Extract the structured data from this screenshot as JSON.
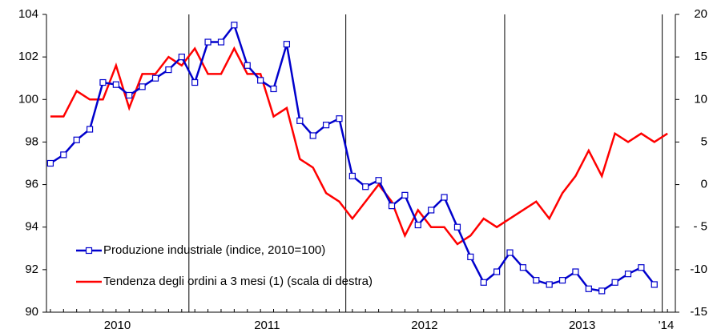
{
  "chart_data": {
    "type": "line",
    "x": [
      0,
      1,
      2,
      3,
      4,
      5,
      6,
      7,
      8,
      9,
      10,
      11,
      12,
      13,
      14,
      15,
      16,
      17,
      18,
      19,
      20,
      21,
      22,
      23,
      24,
      25,
      26,
      27,
      28,
      29,
      30,
      31,
      32,
      33,
      34,
      35,
      36,
      37,
      38,
      39,
      40,
      41,
      42,
      43,
      44,
      45,
      46,
      47
    ],
    "xlim": [
      -0.3,
      47.6
    ],
    "xticks": [
      {
        "value": 5.1,
        "label": "2010"
      },
      {
        "value": 16.5,
        "label": "2011"
      },
      {
        "value": 28.5,
        "label": "2012"
      },
      {
        "value": 40.5,
        "label": "2013"
      },
      {
        "value": 46.9,
        "label": "'14"
      }
    ],
    "year_dividers": [
      10.55,
      22.5,
      34.6,
      46.6
    ],
    "ylim": [
      90,
      104
    ],
    "yticks": [
      90,
      92,
      94,
      96,
      98,
      100,
      102,
      104
    ],
    "y2lim": [
      -15,
      20
    ],
    "y2ticks": [
      {
        "value": -15,
        "label": "-15"
      },
      {
        "value": -10,
        "label": "-10"
      },
      {
        "value": -5,
        "label": "- 5"
      },
      0,
      5,
      10,
      15,
      20
    ],
    "legend": "lower left",
    "series": [
      {
        "name": "Produzione industriale (indice, 2010=100)",
        "color": "#0000cc",
        "marker": "square",
        "values": [
          97.0,
          97.4,
          98.1,
          98.6,
          100.8,
          100.7,
          100.2,
          100.6,
          101.0,
          101.4,
          102.0,
          100.8,
          102.7,
          102.7,
          103.5,
          101.6,
          100.9,
          100.5,
          102.6,
          99.0,
          98.3,
          98.8,
          99.1,
          96.4,
          95.9,
          96.2,
          95.0,
          95.5,
          94.1,
          94.8,
          95.4,
          94.0,
          92.6,
          91.4,
          91.9,
          92.8,
          92.1,
          91.5,
          91.3,
          91.5,
          91.9,
          91.1,
          91.0,
          91.4,
          91.8,
          92.1,
          91.3,
          null
        ]
      },
      {
        "name": "Tendenza degli ordini a 3 mesi (1) (scala di destra)",
        "color": "#ff0000",
        "axis": "y2",
        "values": [
          8,
          8,
          11,
          10,
          10,
          14,
          9,
          13,
          13,
          15,
          14,
          16,
          13,
          13,
          16,
          13,
          13,
          8,
          9,
          3,
          2,
          -1,
          -2,
          -4,
          -2,
          0,
          -2,
          -6,
          -3,
          -5,
          -5,
          -7,
          -6,
          -4,
          -5,
          -4,
          -3,
          -2,
          -4,
          -1,
          1,
          4,
          1,
          6,
          5,
          6,
          5,
          6
        ]
      }
    ]
  }
}
